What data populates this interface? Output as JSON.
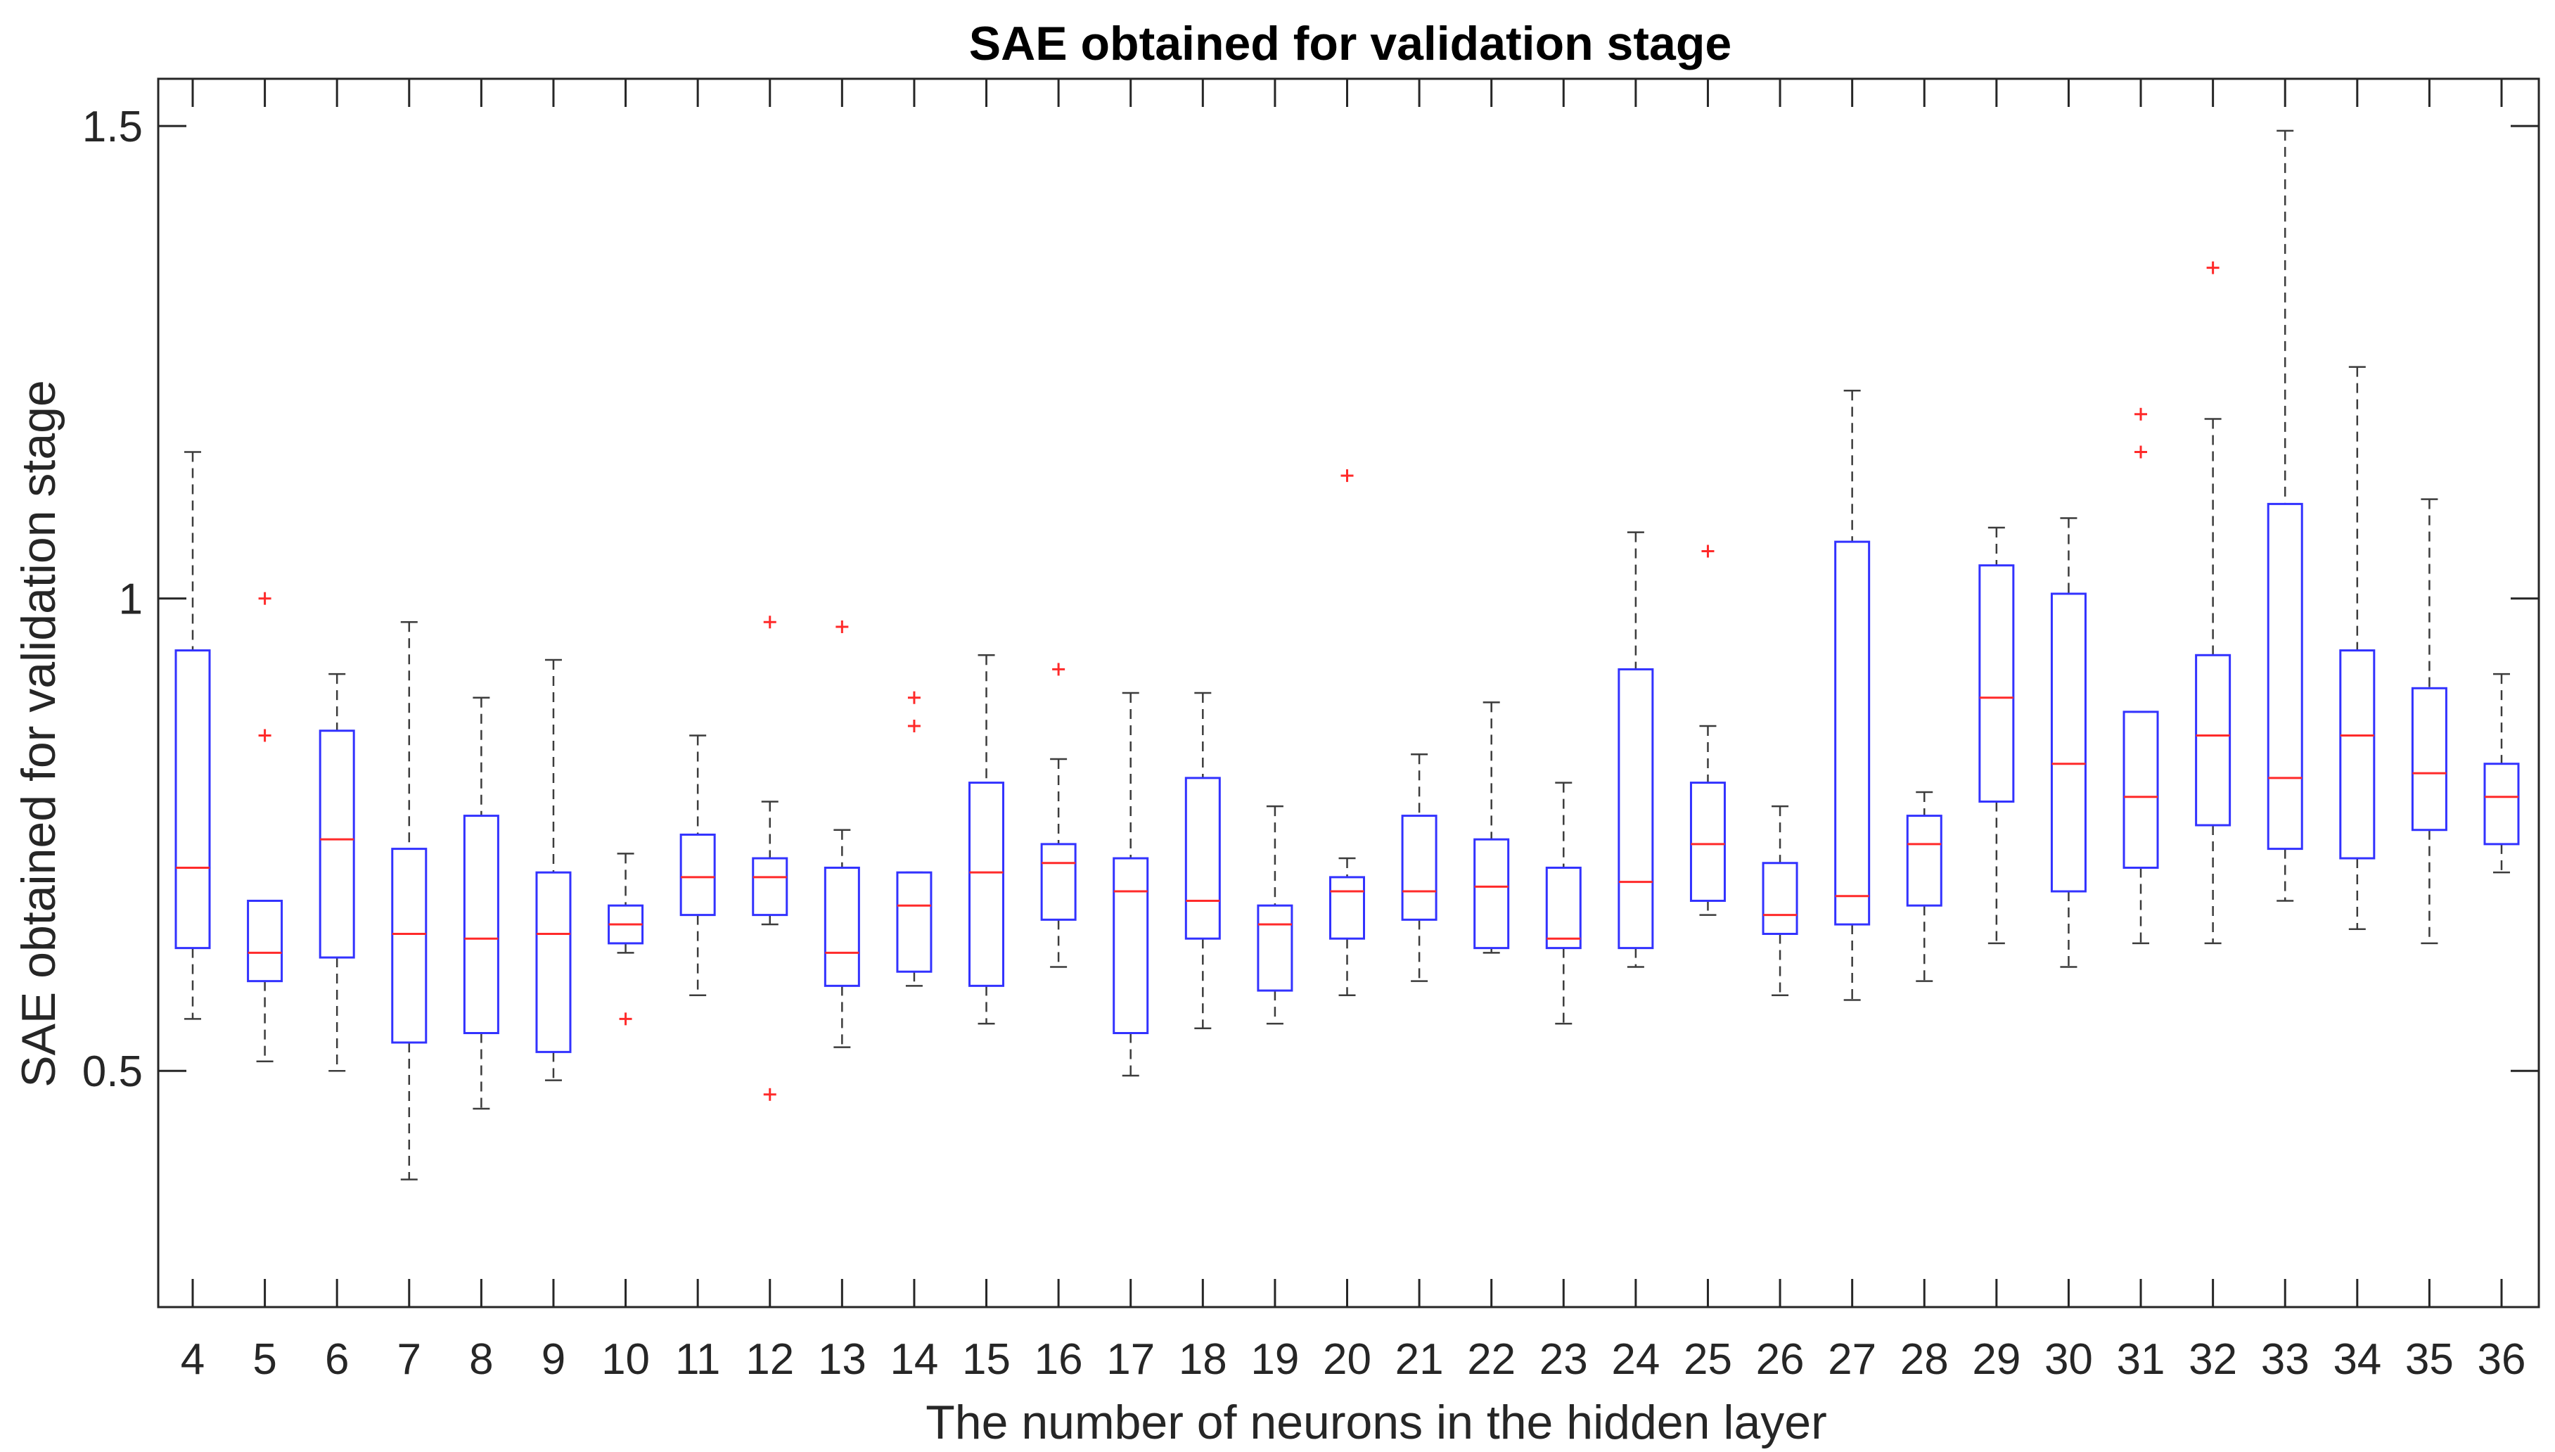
{
  "chart_data": {
    "type": "boxplot",
    "title": "SAE obtained for validation stage",
    "xlabel": "The number of neurons in the hidden layer",
    "ylabel": "SAE obtained for validation stage",
    "ylim": [
      0.25,
      1.55
    ],
    "yticks": [
      0.5,
      1,
      1.5
    ],
    "ytick_labels": [
      "0.5",
      "1",
      "1.5"
    ],
    "grid": false,
    "colors": {
      "box": "#3232ff",
      "median": "#ff2a2a",
      "whisker": "#3c3c3c",
      "outlier": "#ff2a2a",
      "axis": "#262626"
    },
    "categories": [
      "4",
      "5",
      "6",
      "7",
      "8",
      "9",
      "10",
      "11",
      "12",
      "13",
      "14",
      "15",
      "16",
      "17",
      "18",
      "19",
      "20",
      "21",
      "22",
      "23",
      "24",
      "25",
      "26",
      "27",
      "28",
      "29",
      "30",
      "31",
      "32",
      "33",
      "34",
      "35",
      "36"
    ],
    "boxes": [
      {
        "category": "4",
        "whisker_low": 0.555,
        "q1": 0.63,
        "median": 0.715,
        "q3": 0.945,
        "whisker_high": 1.155,
        "outliers": []
      },
      {
        "category": "5",
        "whisker_low": 0.51,
        "q1": 0.595,
        "median": 0.625,
        "q3": 0.68,
        "whisker_high": 0.68,
        "outliers": [
          1.0,
          0.855
        ]
      },
      {
        "category": "6",
        "whisker_low": 0.5,
        "q1": 0.62,
        "median": 0.745,
        "q3": 0.86,
        "whisker_high": 0.92,
        "outliers": []
      },
      {
        "category": "7",
        "whisker_low": 0.385,
        "q1": 0.53,
        "median": 0.645,
        "q3": 0.735,
        "whisker_high": 0.975,
        "outliers": []
      },
      {
        "category": "8",
        "whisker_low": 0.46,
        "q1": 0.54,
        "median": 0.64,
        "q3": 0.77,
        "whisker_high": 0.895,
        "outliers": []
      },
      {
        "category": "9",
        "whisker_low": 0.49,
        "q1": 0.52,
        "median": 0.645,
        "q3": 0.71,
        "whisker_high": 0.935,
        "outliers": []
      },
      {
        "category": "10",
        "whisker_low": 0.625,
        "q1": 0.635,
        "median": 0.655,
        "q3": 0.675,
        "whisker_high": 0.73,
        "outliers": [
          0.555
        ]
      },
      {
        "category": "11",
        "whisker_low": 0.58,
        "q1": 0.665,
        "median": 0.705,
        "q3": 0.75,
        "whisker_high": 0.855,
        "outliers": []
      },
      {
        "category": "12",
        "whisker_low": 0.655,
        "q1": 0.665,
        "median": 0.705,
        "q3": 0.725,
        "whisker_high": 0.785,
        "outliers": [
          0.975,
          0.475
        ]
      },
      {
        "category": "13",
        "whisker_low": 0.525,
        "q1": 0.59,
        "median": 0.625,
        "q3": 0.715,
        "whisker_high": 0.755,
        "outliers": [
          0.97
        ]
      },
      {
        "category": "14",
        "whisker_low": 0.59,
        "q1": 0.605,
        "median": 0.675,
        "q3": 0.71,
        "whisker_high": 0.71,
        "outliers": [
          0.895,
          0.865
        ]
      },
      {
        "category": "15",
        "whisker_low": 0.55,
        "q1": 0.59,
        "median": 0.71,
        "q3": 0.805,
        "whisker_high": 0.94,
        "outliers": []
      },
      {
        "category": "16",
        "whisker_low": 0.61,
        "q1": 0.66,
        "median": 0.72,
        "q3": 0.74,
        "whisker_high": 0.83,
        "outliers": [
          0.925
        ]
      },
      {
        "category": "17",
        "whisker_low": 0.495,
        "q1": 0.54,
        "median": 0.69,
        "q3": 0.725,
        "whisker_high": 0.9,
        "outliers": []
      },
      {
        "category": "18",
        "whisker_low": 0.545,
        "q1": 0.64,
        "median": 0.68,
        "q3": 0.81,
        "whisker_high": 0.9,
        "outliers": []
      },
      {
        "category": "19",
        "whisker_low": 0.55,
        "q1": 0.585,
        "median": 0.655,
        "q3": 0.675,
        "whisker_high": 0.78,
        "outliers": []
      },
      {
        "category": "20",
        "whisker_low": 0.58,
        "q1": 0.64,
        "median": 0.69,
        "q3": 0.705,
        "whisker_high": 0.725,
        "outliers": [
          1.13
        ]
      },
      {
        "category": "21",
        "whisker_low": 0.595,
        "q1": 0.66,
        "median": 0.69,
        "q3": 0.77,
        "whisker_high": 0.835,
        "outliers": []
      },
      {
        "category": "22",
        "whisker_low": 0.625,
        "q1": 0.63,
        "median": 0.695,
        "q3": 0.745,
        "whisker_high": 0.89,
        "outliers": []
      },
      {
        "category": "23",
        "whisker_low": 0.55,
        "q1": 0.63,
        "median": 0.64,
        "q3": 0.715,
        "whisker_high": 0.805,
        "outliers": []
      },
      {
        "category": "24",
        "whisker_low": 0.61,
        "q1": 0.63,
        "median": 0.7,
        "q3": 0.925,
        "whisker_high": 1.07,
        "outliers": []
      },
      {
        "category": "25",
        "whisker_low": 0.665,
        "q1": 0.68,
        "median": 0.74,
        "q3": 0.805,
        "whisker_high": 0.865,
        "outliers": [
          1.05
        ]
      },
      {
        "category": "26",
        "whisker_low": 0.58,
        "q1": 0.645,
        "median": 0.665,
        "q3": 0.72,
        "whisker_high": 0.78,
        "outliers": []
      },
      {
        "category": "27",
        "whisker_low": 0.575,
        "q1": 0.655,
        "median": 0.685,
        "q3": 1.06,
        "whisker_high": 1.22,
        "outliers": []
      },
      {
        "category": "28",
        "whisker_low": 0.595,
        "q1": 0.675,
        "median": 0.74,
        "q3": 0.77,
        "whisker_high": 0.795,
        "outliers": []
      },
      {
        "category": "29",
        "whisker_low": 0.635,
        "q1": 0.785,
        "median": 0.895,
        "q3": 1.035,
        "whisker_high": 1.075,
        "outliers": []
      },
      {
        "category": "30",
        "whisker_low": 0.61,
        "q1": 0.69,
        "median": 0.825,
        "q3": 1.005,
        "whisker_high": 1.085,
        "outliers": []
      },
      {
        "category": "31",
        "whisker_low": 0.635,
        "q1": 0.715,
        "median": 0.79,
        "q3": 0.88,
        "whisker_high": 0.88,
        "outliers": [
          1.195,
          1.155
        ]
      },
      {
        "category": "32",
        "whisker_low": 0.635,
        "q1": 0.76,
        "median": 0.855,
        "q3": 0.94,
        "whisker_high": 1.19,
        "outliers": [
          1.35
        ]
      },
      {
        "category": "33",
        "whisker_low": 0.68,
        "q1": 0.735,
        "median": 0.81,
        "q3": 1.1,
        "whisker_high": 1.495,
        "outliers": []
      },
      {
        "category": "34",
        "whisker_low": 0.65,
        "q1": 0.725,
        "median": 0.855,
        "q3": 0.945,
        "whisker_high": 1.245,
        "outliers": []
      },
      {
        "category": "35",
        "whisker_low": 0.635,
        "q1": 0.755,
        "median": 0.815,
        "q3": 0.905,
        "whisker_high": 1.105,
        "outliers": []
      },
      {
        "category": "36",
        "whisker_low": 0.71,
        "q1": 0.74,
        "median": 0.79,
        "q3": 0.825,
        "whisker_high": 0.92,
        "outliers": []
      }
    ]
  }
}
